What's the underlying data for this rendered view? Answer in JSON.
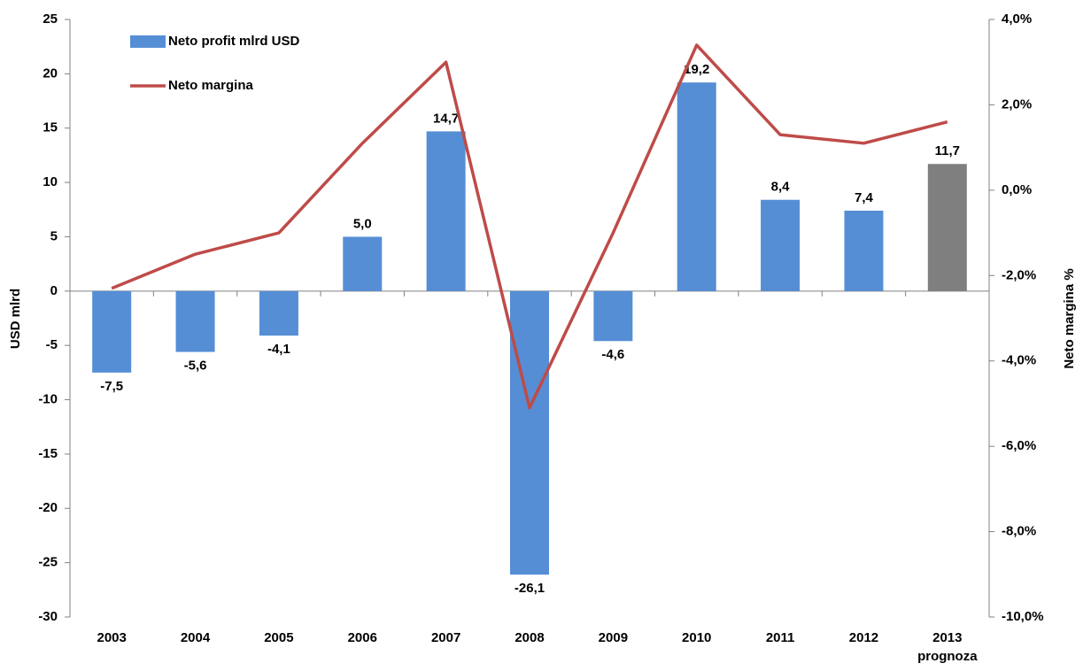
{
  "chart_data": {
    "type": "bar_line",
    "categories": [
      "2003",
      "2004",
      "2005",
      "2006",
      "2007",
      "2008",
      "2009",
      "2010",
      "2011",
      "2012",
      "2013"
    ],
    "annotations": [
      {
        "text": "prognoza",
        "category": 10
      }
    ],
    "series": [
      {
        "name": "Neto profit mlrd USD",
        "type": "bar",
        "color": "#558ed5",
        "colors": [
          "#558ed5",
          "#558ed5",
          "#558ed5",
          "#558ed5",
          "#558ed5",
          "#558ed5",
          "#558ed5",
          "#558ed5",
          "#558ed5",
          "#558ed5",
          "#7f7f7f"
        ],
        "values": [
          -7.5,
          -5.6,
          -4.1,
          5.0,
          14.7,
          -26.1,
          -4.6,
          19.2,
          8.4,
          7.4,
          11.7
        ],
        "value_labels": [
          "-7,5",
          "-5,6",
          "-4,1",
          "5,0",
          "14,7",
          "-26,1",
          "-4,6",
          "19,2",
          "8,4",
          "7,4",
          "11,7"
        ]
      },
      {
        "name": "Neto margina",
        "type": "line",
        "color": "#be4b48",
        "axis": "y2",
        "values": [
          -2.3,
          -1.5,
          -1.0,
          1.1,
          3.0,
          -5.1,
          -1.0,
          3.4,
          1.3,
          1.1,
          1.6
        ]
      }
    ],
    "ylabel": "USD mlrd",
    "y2label": "Neto margina %",
    "ylim": [
      -30,
      25
    ],
    "yticks": [
      -30,
      -25,
      -20,
      -15,
      -10,
      -5,
      0,
      5,
      10,
      15,
      20,
      25
    ],
    "y2lim": [
      -10,
      4
    ],
    "y2ticks": [
      {
        "value": -10,
        "label": "-10,0%"
      },
      {
        "value": -8,
        "label": "-8,0%"
      },
      {
        "value": -6,
        "label": "-6,0%"
      },
      {
        "value": -4,
        "label": "-4,0%"
      },
      {
        "value": -2,
        "label": "-2,0%"
      },
      {
        "value": 0,
        "label": "0,0%"
      },
      {
        "value": 2,
        "label": "2,0%"
      },
      {
        "value": 4,
        "label": "4,0%"
      }
    ],
    "grid": false,
    "legend": "top-left"
  }
}
